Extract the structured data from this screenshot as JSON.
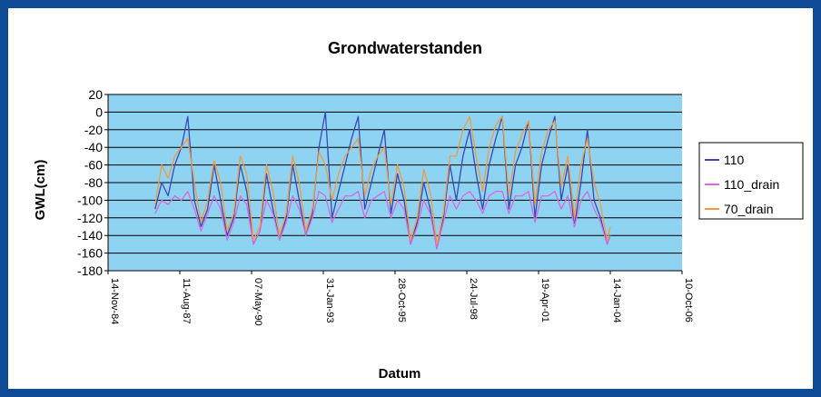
{
  "chart_data": {
    "type": "line",
    "title": "Grondwaterstanden",
    "xlabel": "Datum",
    "ylabel": "GWL(cm)",
    "ylim": [
      -180,
      20
    ],
    "yticks": [
      20,
      0,
      -20,
      -40,
      -60,
      -80,
      -100,
      -120,
      -140,
      -160,
      -180
    ],
    "xlim": [
      "1984-11-14",
      "2006-10-10"
    ],
    "xtick_labels": [
      "14-Nov-84",
      "11-Aug-87",
      "07-May-90",
      "31-Jan-93",
      "28-Oct-95",
      "24-Jul-98",
      "19-Apr-01",
      "14-Jan-04",
      "10-Oct-06"
    ],
    "grid": true,
    "legend": "right",
    "plot_background": "#8fd3f3",
    "series": [
      {
        "name": "110",
        "color": "#3a48b8",
        "x": [
          "1986-09-01",
          "1986-12-01",
          "1987-03-01",
          "1987-06-01",
          "1987-09-01",
          "1987-12-01",
          "1988-03-01",
          "1988-06-01",
          "1988-09-01",
          "1988-12-01",
          "1989-03-01",
          "1989-06-01",
          "1989-09-01",
          "1989-12-01",
          "1990-03-01",
          "1990-06-01",
          "1990-09-01",
          "1990-12-01",
          "1991-03-01",
          "1991-06-01",
          "1991-09-01",
          "1991-12-01",
          "1992-03-01",
          "1992-06-01",
          "1992-09-01",
          "1992-12-01",
          "1993-03-01",
          "1993-06-01",
          "1993-09-01",
          "1993-12-01",
          "1994-03-01",
          "1994-06-01",
          "1994-09-01",
          "1994-12-01",
          "1995-03-01",
          "1995-06-01",
          "1995-09-01",
          "1995-12-01",
          "1996-03-01",
          "1996-06-01",
          "1996-09-01",
          "1996-12-01",
          "1997-03-01",
          "1997-06-01",
          "1997-09-01",
          "1997-12-01",
          "1998-03-01",
          "1998-06-01",
          "1998-09-01",
          "1998-12-01",
          "1999-03-01",
          "1999-06-01",
          "1999-09-01",
          "1999-12-01",
          "2000-03-01",
          "2000-06-01",
          "2000-09-01",
          "2000-12-01",
          "2001-03-01",
          "2001-06-01",
          "2001-09-01",
          "2001-12-01",
          "2002-03-01",
          "2002-06-01",
          "2002-09-01",
          "2002-12-01",
          "2003-03-01",
          "2003-06-01",
          "2003-09-01",
          "2003-12-01",
          "2004-01-14"
        ],
        "values": [
          -110,
          -80,
          -95,
          -60,
          -40,
          -5,
          -100,
          -130,
          -110,
          -60,
          -100,
          -140,
          -120,
          -60,
          -90,
          -150,
          -135,
          -70,
          -110,
          -145,
          -120,
          -60,
          -100,
          -140,
          -115,
          -40,
          0,
          -120,
          -90,
          -60,
          -30,
          -5,
          -110,
          -80,
          -50,
          -20,
          -115,
          -70,
          -100,
          -150,
          -125,
          -80,
          -110,
          -155,
          -120,
          -60,
          -100,
          -50,
          -20,
          -70,
          -110,
          -60,
          -30,
          -5,
          -110,
          -60,
          -40,
          -10,
          -120,
          -60,
          -30,
          -5,
          -100,
          -60,
          -130,
          -80,
          -20,
          -100,
          -120,
          -150,
          -140
        ]
      },
      {
        "name": "110_drain",
        "color": "#d86adb",
        "x": [
          "1986-09-01",
          "1986-12-01",
          "1987-03-01",
          "1987-06-01",
          "1987-09-01",
          "1987-12-01",
          "1988-03-01",
          "1988-06-01",
          "1988-09-01",
          "1988-12-01",
          "1989-03-01",
          "1989-06-01",
          "1989-09-01",
          "1989-12-01",
          "1990-03-01",
          "1990-06-01",
          "1990-09-01",
          "1990-12-01",
          "1991-03-01",
          "1991-06-01",
          "1991-09-01",
          "1991-12-01",
          "1992-03-01",
          "1992-06-01",
          "1992-09-01",
          "1992-12-01",
          "1993-03-01",
          "1993-06-01",
          "1993-09-01",
          "1993-12-01",
          "1994-03-01",
          "1994-06-01",
          "1994-09-01",
          "1994-12-01",
          "1995-03-01",
          "1995-06-01",
          "1995-09-01",
          "1995-12-01",
          "1996-03-01",
          "1996-06-01",
          "1996-09-01",
          "1996-12-01",
          "1997-03-01",
          "1997-06-01",
          "1997-09-01",
          "1997-12-01",
          "1998-03-01",
          "1998-06-01",
          "1998-09-01",
          "1998-12-01",
          "1999-03-01",
          "1999-06-01",
          "1999-09-01",
          "1999-12-01",
          "2000-03-01",
          "2000-06-01",
          "2000-09-01",
          "2000-12-01",
          "2001-03-01",
          "2001-06-01",
          "2001-09-01",
          "2001-12-01",
          "2002-03-01",
          "2002-06-01",
          "2002-09-01",
          "2002-12-01",
          "2003-03-01",
          "2003-06-01",
          "2003-09-01",
          "2003-12-01",
          "2004-01-14"
        ],
        "values": [
          -115,
          -100,
          -105,
          -95,
          -100,
          -90,
          -110,
          -135,
          -115,
          -95,
          -110,
          -145,
          -125,
          -95,
          -105,
          -150,
          -135,
          -100,
          -115,
          -145,
          -125,
          -95,
          -110,
          -140,
          -120,
          -90,
          -95,
          -125,
          -110,
          -95,
          -95,
          -90,
          -120,
          -100,
          -95,
          -90,
          -120,
          -100,
          -110,
          -150,
          -130,
          -100,
          -115,
          -155,
          -125,
          -95,
          -110,
          -95,
          -90,
          -100,
          -115,
          -95,
          -90,
          -90,
          -115,
          -95,
          -95,
          -90,
          -125,
          -95,
          -95,
          -90,
          -110,
          -95,
          -130,
          -100,
          -90,
          -110,
          -125,
          -150,
          -140
        ]
      },
      {
        "name": "70_drain",
        "color": "#f39a3c",
        "x": [
          "1986-09-01",
          "1986-12-01",
          "1987-03-01",
          "1987-06-01",
          "1987-09-01",
          "1987-12-01",
          "1988-03-01",
          "1988-06-01",
          "1988-09-01",
          "1988-12-01",
          "1989-03-01",
          "1989-06-01",
          "1989-09-01",
          "1989-12-01",
          "1990-03-01",
          "1990-06-01",
          "1990-09-01",
          "1990-12-01",
          "1991-03-01",
          "1991-06-01",
          "1991-09-01",
          "1991-12-01",
          "1992-03-01",
          "1992-06-01",
          "1992-09-01",
          "1992-12-01",
          "1993-03-01",
          "1993-06-01",
          "1993-09-01",
          "1993-12-01",
          "1994-03-01",
          "1994-06-01",
          "1994-09-01",
          "1994-12-01",
          "1995-03-01",
          "1995-06-01",
          "1995-09-01",
          "1995-12-01",
          "1996-03-01",
          "1996-06-01",
          "1996-09-01",
          "1996-12-01",
          "1997-03-01",
          "1997-06-01",
          "1997-09-01",
          "1997-12-01",
          "1998-03-01",
          "1998-06-01",
          "1998-09-01",
          "1998-12-01",
          "1999-03-01",
          "1999-06-01",
          "1999-09-01",
          "1999-12-01",
          "2000-03-01",
          "2000-06-01",
          "2000-09-01",
          "2000-12-01",
          "2001-03-01",
          "2001-06-01",
          "2001-09-01",
          "2001-12-01",
          "2002-03-01",
          "2002-06-01",
          "2002-09-01",
          "2002-12-01",
          "2003-03-01",
          "2003-06-01",
          "2003-09-01",
          "2003-12-01",
          "2004-01-14"
        ],
        "values": [
          -105,
          -60,
          -75,
          -50,
          -40,
          -30,
          -80,
          -125,
          -100,
          -55,
          -80,
          -135,
          -115,
          -50,
          -70,
          -145,
          -130,
          -60,
          -90,
          -140,
          -115,
          -50,
          -80,
          -135,
          -110,
          -45,
          -60,
          -100,
          -70,
          -50,
          -40,
          -30,
          -95,
          -65,
          -50,
          -40,
          -105,
          -60,
          -85,
          -145,
          -120,
          -65,
          -90,
          -150,
          -115,
          -50,
          -50,
          -20,
          -5,
          -50,
          -90,
          -40,
          -15,
          -5,
          -95,
          -45,
          -25,
          -10,
          -105,
          -45,
          -20,
          -10,
          -85,
          -50,
          -120,
          -60,
          -30,
          -80,
          -105,
          -145,
          -130
        ]
      }
    ]
  }
}
